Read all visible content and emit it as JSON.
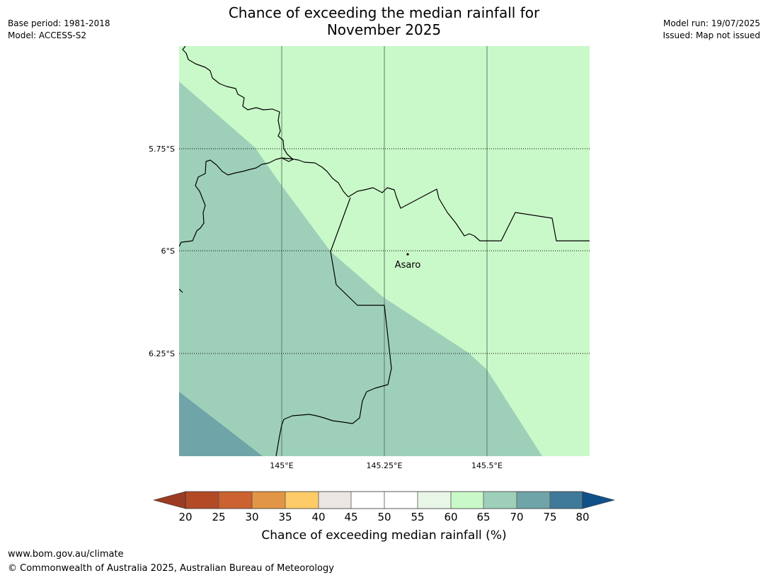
{
  "header": {
    "title_line1": "Chance of exceeding the median rainfall for",
    "title_line2": "November 2025",
    "base_period": "Base period: 1981-2018",
    "model": "Model: ACCESS-S2",
    "model_run": "Model run: 19/07/2025",
    "issued": "Issued: Map not issued"
  },
  "map": {
    "lat_labels": [
      "5.75°S",
      "6°S",
      "6.25°S"
    ],
    "lon_labels": [
      "145°E",
      "145.25°E",
      "145.5°E"
    ],
    "place": {
      "name": "Asaro"
    }
  },
  "colorbar": {
    "ticks": [
      "20",
      "25",
      "30",
      "35",
      "40",
      "45",
      "50",
      "55",
      "60",
      "65",
      "70",
      "75",
      "80"
    ],
    "label": "Chance of exceeding median rainfall (%)",
    "colors": {
      "below_20": "#9c3b23",
      "20_25": "#b34a25",
      "25_30": "#cb6230",
      "30_35": "#e29545",
      "35_40": "#fdcb68",
      "40_45": "#ebe6e2",
      "45_50": "#ffffff",
      "50_55": "#ffffff",
      "55_60": "#e8f6e8",
      "60_65": "#caf9c9",
      "65_70": "#9ed0b9",
      "70_75": "#6fa4a8",
      "75_80": "#407a9a",
      "above_80": "#10508a"
    }
  },
  "footer": {
    "url": "www.bom.gov.au/climate",
    "copyright": "© Commonwealth of Australia 2025, Australian Bureau of Meteorology"
  }
}
